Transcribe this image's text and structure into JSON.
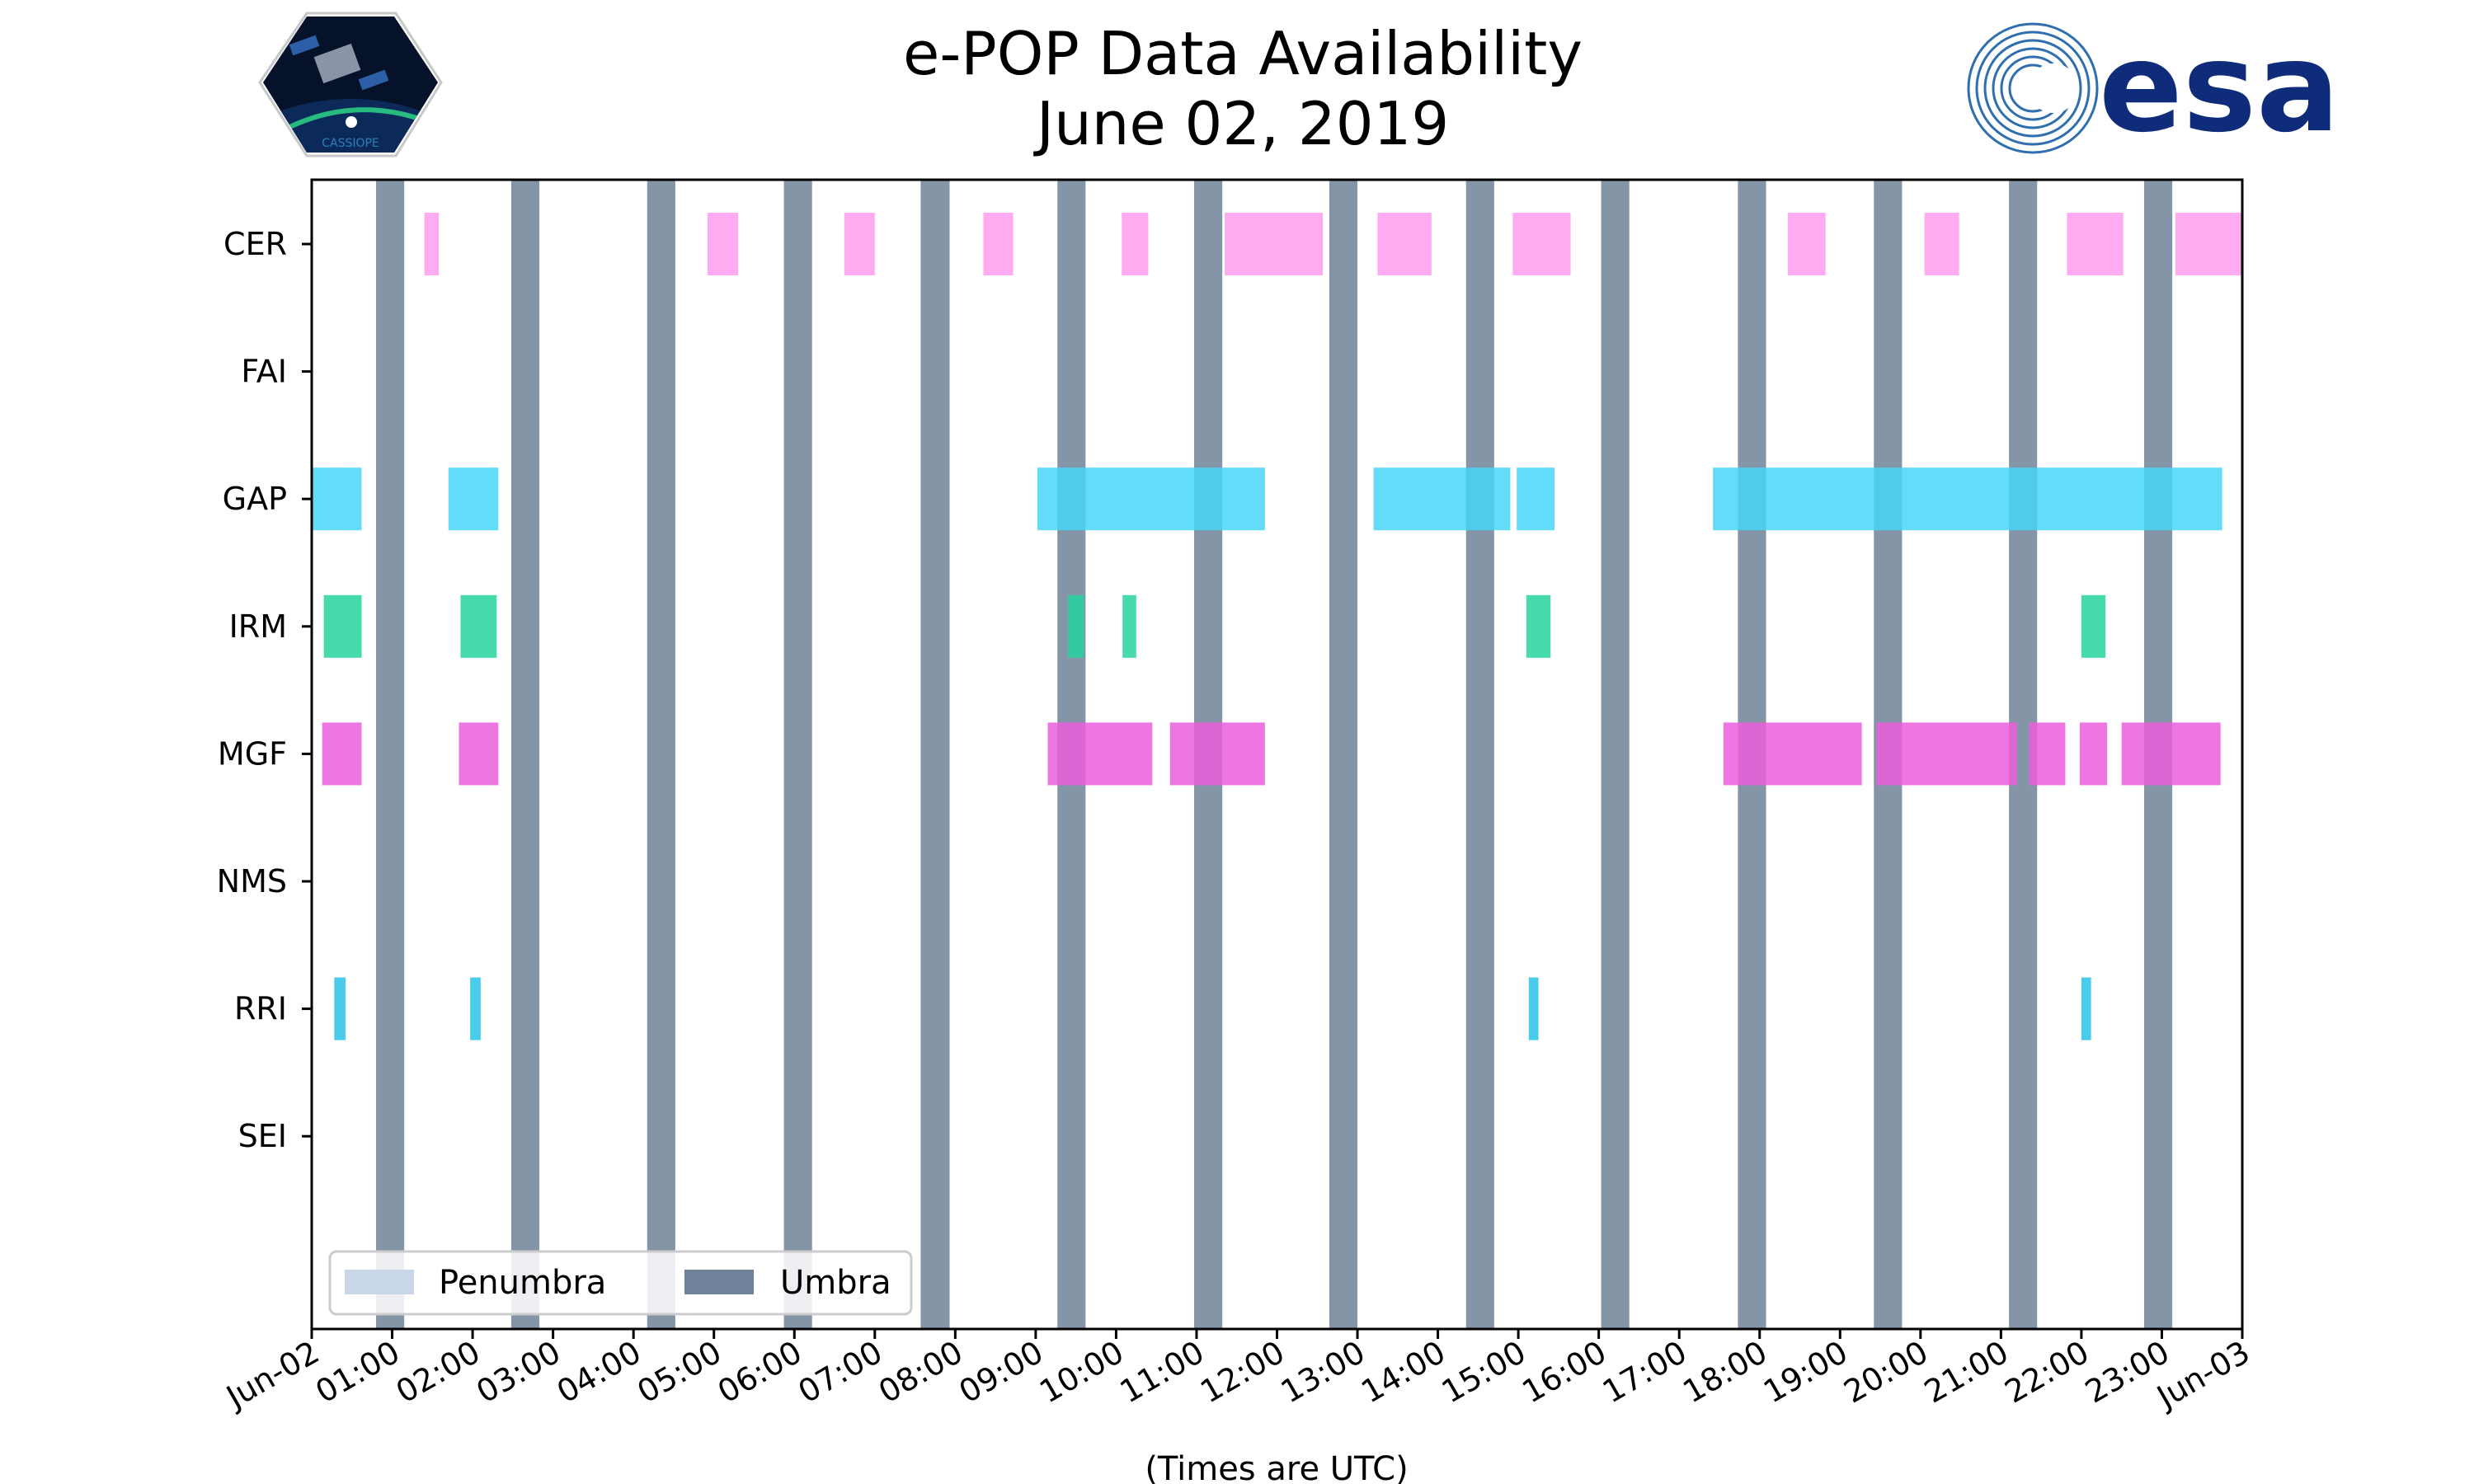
{
  "chart_data": {
    "type": "timeline",
    "title": [
      "e-POP Data Availability",
      "June 02, 2019"
    ],
    "xlabel": "(Times are UTC)",
    "xlim": [
      0,
      24
    ],
    "x_tick_labels": [
      "Jun-02",
      "01:00",
      "02:00",
      "03:00",
      "04:00",
      "05:00",
      "06:00",
      "07:00",
      "08:00",
      "09:00",
      "10:00",
      "11:00",
      "12:00",
      "13:00",
      "14:00",
      "15:00",
      "16:00",
      "17:00",
      "18:00",
      "19:00",
      "20:00",
      "21:00",
      "22:00",
      "23:00",
      "Jun-03"
    ],
    "categories": [
      "CER",
      "FAI",
      "GAP",
      "IRM",
      "MGF",
      "NMS",
      "RRI",
      "SEI"
    ],
    "colors": {
      "CER": "#ff9cf0",
      "GAP": "#47d6f7",
      "IRM": "#26d39f",
      "MGF": "#ea5edc",
      "RRI": "#28c3e6",
      "umbra": "#6e8399",
      "penumbra": "#c8d6e8"
    },
    "umbra_intervals": [
      [
        0.8,
        1.15
      ],
      [
        2.48,
        2.83
      ],
      [
        4.17,
        4.52
      ],
      [
        5.87,
        6.22
      ],
      [
        7.57,
        7.93
      ],
      [
        9.27,
        9.62
      ],
      [
        10.97,
        11.32
      ],
      [
        12.65,
        13.0
      ],
      [
        14.35,
        14.7
      ],
      [
        16.03,
        16.38
      ],
      [
        17.73,
        18.08
      ],
      [
        19.42,
        19.77
      ],
      [
        21.1,
        21.45
      ],
      [
        22.78,
        23.13
      ]
    ],
    "series": [
      {
        "name": "CER",
        "intervals": [
          [
            1.4,
            1.58
          ],
          [
            4.92,
            5.3
          ],
          [
            6.62,
            7.0
          ],
          [
            8.35,
            8.72
          ],
          [
            10.07,
            10.4
          ],
          [
            11.35,
            12.57
          ],
          [
            13.25,
            13.92
          ],
          [
            14.93,
            15.65
          ],
          [
            18.35,
            18.82
          ],
          [
            20.05,
            20.48
          ],
          [
            21.82,
            22.52
          ],
          [
            23.17,
            24.0
          ]
        ]
      },
      {
        "name": "FAI",
        "intervals": []
      },
      {
        "name": "GAP",
        "intervals": [
          [
            0.0,
            0.33
          ],
          [
            0.33,
            0.62
          ],
          [
            1.7,
            2.32
          ],
          [
            9.02,
            11.85
          ],
          [
            13.2,
            14.9
          ],
          [
            14.98,
            15.45
          ],
          [
            17.42,
            23.75
          ]
        ]
      },
      {
        "name": "IRM",
        "intervals": [
          [
            0.15,
            0.62
          ],
          [
            1.85,
            2.3
          ],
          [
            9.4,
            9.6
          ],
          [
            10.08,
            10.25
          ],
          [
            15.1,
            15.4
          ],
          [
            22.0,
            22.3
          ]
        ]
      },
      {
        "name": "MGF",
        "intervals": [
          [
            0.13,
            0.62
          ],
          [
            1.83,
            2.32
          ],
          [
            9.15,
            10.45
          ],
          [
            10.67,
            11.85
          ],
          [
            17.55,
            19.27
          ],
          [
            19.45,
            21.2
          ],
          [
            21.35,
            21.8
          ],
          [
            21.98,
            22.32
          ],
          [
            22.5,
            23.73
          ]
        ]
      },
      {
        "name": "NMS",
        "intervals": []
      },
      {
        "name": "RRI",
        "intervals": [
          [
            0.28,
            0.42
          ],
          [
            1.97,
            2.1
          ],
          [
            15.13,
            15.25
          ],
          [
            22.0,
            22.12
          ]
        ]
      },
      {
        "name": "SEI",
        "intervals": []
      }
    ],
    "legend": {
      "placement": "lower-left",
      "entries": [
        {
          "label": "Penumbra",
          "color_key": "penumbra"
        },
        {
          "label": "Umbra",
          "color_key": "umbra"
        }
      ]
    }
  },
  "logos": {
    "left": {
      "name": "CASSIOPE mission patch",
      "caption": "CASSIOPE"
    },
    "right": {
      "name": "ESA logo",
      "text": "esa"
    }
  }
}
